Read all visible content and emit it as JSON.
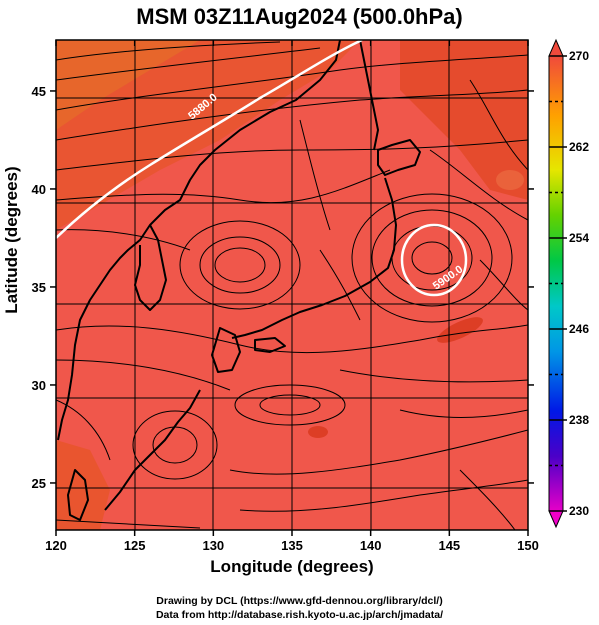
{
  "title": "MSM 03Z11Aug2024 (500.0hPa)",
  "x_axis": {
    "label": "Longitude (degrees)",
    "min": 120,
    "max": 150,
    "ticks": [
      120,
      125,
      130,
      135,
      140,
      145,
      150
    ],
    "tick_labels": [
      "120",
      "125",
      "130",
      "135",
      "140",
      "145",
      "150"
    ]
  },
  "y_axis": {
    "label": "Latitude  (degrees)",
    "min": 22.6,
    "max": 47.6,
    "ticks": [
      25,
      30,
      35,
      40,
      45
    ],
    "tick_labels": [
      "25",
      "30",
      "35",
      "40",
      "45"
    ]
  },
  "colorbar": {
    "min": 230,
    "max": 270,
    "tick_values": [
      230,
      238,
      246,
      254,
      262,
      270
    ],
    "tick_labels": [
      "230",
      "238",
      "246",
      "254",
      "262",
      "270"
    ],
    "dashed_values": [
      234,
      242,
      250,
      258,
      266
    ]
  },
  "contours": [
    {
      "label": "5880.0",
      "kind": "trough-ridge line"
    },
    {
      "label": "5900.0",
      "kind": "closed high"
    }
  ],
  "colors": {
    "field_main": "#f0574b",
    "field_warm": "#e85530",
    "field_hot": "#e0401e",
    "contour": "#ffffff",
    "streamline": "#000000"
  },
  "credits": [
    "Drawing by DCL (https://www.gfd-dennou.org/library/dcl/)",
    "Data from http://database.rish.kyoto-u.ac.jp/arch/jmadata/"
  ]
}
